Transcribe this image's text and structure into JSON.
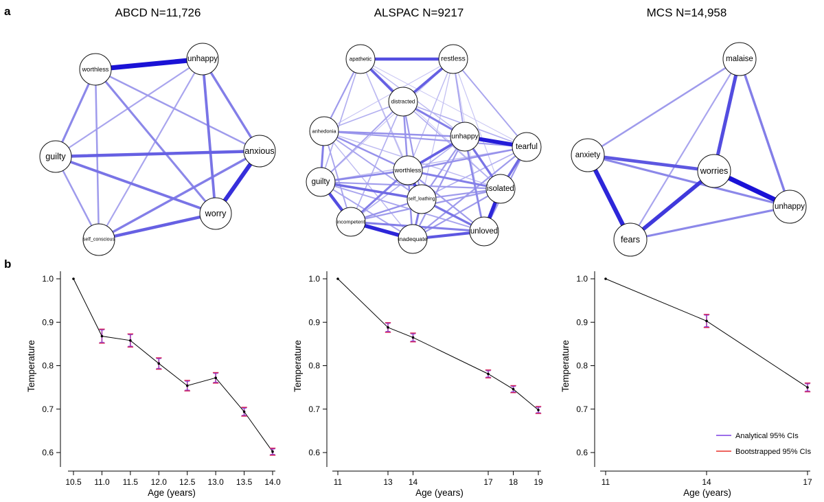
{
  "panel_letters": [
    "a",
    "b"
  ],
  "chart_data": [
    {
      "type": "network",
      "title": "ABCD N=11,726",
      "nodes": [
        {
          "id": "worthless",
          "size": 8
        },
        {
          "id": "unhappy",
          "size": 10
        },
        {
          "id": "guilty",
          "size": 11
        },
        {
          "id": "anxious",
          "size": 11
        },
        {
          "id": "worry",
          "size": 11
        },
        {
          "id": "self_conscious",
          "size": 6
        }
      ],
      "edges": [
        {
          "source": "worthless",
          "target": "unhappy",
          "weight": 1.0
        },
        {
          "source": "anxious",
          "target": "worry",
          "weight": 0.85
        },
        {
          "source": "guilty",
          "target": "anxious",
          "weight": 0.6
        },
        {
          "source": "self_conscious",
          "target": "worry",
          "weight": 0.6
        },
        {
          "source": "guilty",
          "target": "worry",
          "weight": 0.5
        },
        {
          "source": "unhappy",
          "target": "worry",
          "weight": 0.5
        },
        {
          "source": "self_conscious",
          "target": "anxious",
          "weight": 0.45
        },
        {
          "source": "worthless",
          "target": "guilty",
          "weight": 0.4
        },
        {
          "source": "unhappy",
          "target": "anxious",
          "weight": 0.45
        },
        {
          "source": "worthless",
          "target": "worry",
          "weight": 0.4
        },
        {
          "source": "worthless",
          "target": "anxious",
          "weight": 0.3
        },
        {
          "source": "worthless",
          "target": "self_conscious",
          "weight": 0.3
        },
        {
          "source": "guilty",
          "target": "self_conscious",
          "weight": 0.3
        },
        {
          "source": "unhappy",
          "target": "guilty",
          "weight": 0.25
        },
        {
          "source": "unhappy",
          "target": "self_conscious",
          "weight": 0.25
        }
      ]
    },
    {
      "type": "network",
      "title": "ALSPAC N=9217",
      "nodes": [
        {
          "id": "apathetic",
          "size": 7
        },
        {
          "id": "restless",
          "size": 9
        },
        {
          "id": "distracted",
          "size": 7
        },
        {
          "id": "anhedonia",
          "size": 6.5
        },
        {
          "id": "unhappy",
          "size": 9
        },
        {
          "id": "tearful",
          "size": 10
        },
        {
          "id": "worthless",
          "size": 8
        },
        {
          "id": "guilty",
          "size": 10
        },
        {
          "id": "self_loathing",
          "size": 5
        },
        {
          "id": "isolated",
          "size": 10
        },
        {
          "id": "incompetent",
          "size": 6.5
        },
        {
          "id": "inadequate",
          "size": 7.5
        },
        {
          "id": "unloved",
          "size": 10
        }
      ],
      "edges": [
        {
          "source": "apathetic",
          "target": "restless",
          "weight": 0.7
        },
        {
          "source": "apathetic",
          "target": "distracted",
          "weight": 0.6
        },
        {
          "source": "restless",
          "target": "distracted",
          "weight": 0.6
        },
        {
          "source": "unhappy",
          "target": "tearful",
          "weight": 0.95
        },
        {
          "source": "isolated",
          "target": "unloved",
          "weight": 0.9
        },
        {
          "source": "incompetent",
          "target": "inadequate",
          "weight": 0.9
        },
        {
          "source": "worthless",
          "target": "self_loathing",
          "weight": 0.7
        },
        {
          "source": "guilty",
          "target": "incompetent",
          "weight": 0.7
        },
        {
          "source": "inadequate",
          "target": "unloved",
          "weight": 0.65
        },
        {
          "source": "worthless",
          "target": "unhappy",
          "weight": 0.6
        },
        {
          "source": "guilty",
          "target": "self_loathing",
          "weight": 0.55
        },
        {
          "source": "anhedonia",
          "target": "guilty",
          "weight": 0.45
        },
        {
          "source": "tearful",
          "target": "isolated",
          "weight": 0.55
        },
        {
          "source": "unhappy",
          "target": "isolated",
          "weight": 0.5
        },
        {
          "source": "distracted",
          "target": "unhappy",
          "weight": 0.45
        },
        {
          "source": "self_loathing",
          "target": "unloved",
          "weight": 0.5
        },
        {
          "source": "worthless",
          "target": "isolated",
          "weight": 0.45
        },
        {
          "source": "incompetent",
          "target": "unloved",
          "weight": 0.45
        },
        {
          "source": "worthless",
          "target": "incompetent",
          "weight": 0.45
        },
        {
          "source": "anhedonia",
          "target": "unhappy",
          "weight": 0.35
        },
        {
          "source": "anhedonia",
          "target": "worthless",
          "weight": 0.35
        },
        {
          "source": "distracted",
          "target": "worthless",
          "weight": 0.35
        },
        {
          "source": "guilty",
          "target": "worthless",
          "weight": 0.4
        },
        {
          "source": "self_loathing",
          "target": "inadequate",
          "weight": 0.45
        },
        {
          "source": "unhappy",
          "target": "unloved",
          "weight": 0.4
        },
        {
          "source": "tearful",
          "target": "worthless",
          "weight": 0.35
        },
        {
          "source": "apathetic",
          "target": "anhedonia",
          "weight": 0.3
        },
        {
          "source": "restless",
          "target": "tearful",
          "weight": 0.25
        },
        {
          "source": "anhedonia",
          "target": "tearful",
          "weight": 0.3
        },
        {
          "source": "distracted",
          "target": "self_loathing",
          "weight": 0.3
        },
        {
          "source": "guilty",
          "target": "isolated",
          "weight": 0.3
        },
        {
          "source": "anhedonia",
          "target": "incompetent",
          "weight": 0.25
        },
        {
          "source": "incompetent",
          "target": "isolated",
          "weight": 0.3
        },
        {
          "source": "unhappy",
          "target": "inadequate",
          "weight": 0.3
        },
        {
          "source": "tearful",
          "target": "inadequate",
          "weight": 0.3
        },
        {
          "source": "restless",
          "target": "unhappy",
          "weight": 0.25
        },
        {
          "source": "apathetic",
          "target": "guilty",
          "weight": 0.2
        },
        {
          "source": "distracted",
          "target": "guilty",
          "weight": 0.25
        },
        {
          "source": "worthless",
          "target": "unloved",
          "weight": 0.3
        },
        {
          "source": "guilty",
          "target": "unloved",
          "weight": 0.25
        },
        {
          "source": "anhedonia",
          "target": "self_loathing",
          "weight": 0.25
        },
        {
          "source": "apathetic",
          "target": "unhappy",
          "weight": 0.15
        },
        {
          "source": "restless",
          "target": "worthless",
          "weight": 0.15
        },
        {
          "source": "distracted",
          "target": "tearful",
          "weight": 0.2
        },
        {
          "source": "distracted",
          "target": "incompetent",
          "weight": 0.2
        },
        {
          "source": "distracted",
          "target": "isolated",
          "weight": 0.2
        },
        {
          "source": "apathetic",
          "target": "worthless",
          "weight": 0.15
        },
        {
          "source": "anhedonia",
          "target": "distracted",
          "weight": 0.2
        },
        {
          "source": "restless",
          "target": "anhedonia",
          "weight": 0.1
        },
        {
          "source": "anhedonia",
          "target": "inadequate",
          "weight": 0.15
        },
        {
          "source": "apathetic",
          "target": "tearful",
          "weight": 0.08
        },
        {
          "source": "restless",
          "target": "isolated",
          "weight": 0.1
        },
        {
          "source": "restless",
          "target": "self_loathing",
          "weight": 0.12
        },
        {
          "source": "apathetic",
          "target": "self_loathing",
          "weight": 0.1
        },
        {
          "source": "tearful",
          "target": "guilty",
          "weight": 0.15
        },
        {
          "source": "tearful",
          "target": "unloved",
          "weight": 0.3
        },
        {
          "source": "worthless",
          "target": "inadequate",
          "weight": 0.35
        },
        {
          "source": "isolated",
          "target": "inadequate",
          "weight": 0.3
        },
        {
          "source": "unhappy",
          "target": "self_loathing",
          "weight": 0.3
        },
        {
          "source": "unhappy",
          "target": "incompetent",
          "weight": 0.2
        },
        {
          "source": "guilty",
          "target": "inadequate",
          "weight": 0.25
        },
        {
          "source": "restless",
          "target": "guilty",
          "weight": 0.1
        },
        {
          "source": "apathetic",
          "target": "isolated",
          "weight": 0.07
        },
        {
          "source": "anhedonia",
          "target": "isolated",
          "weight": 0.15
        },
        {
          "source": "restless",
          "target": "unloved",
          "weight": 0.07
        },
        {
          "source": "tearful",
          "target": "self_loathing",
          "weight": 0.2
        },
        {
          "source": "self_loathing",
          "target": "isolated",
          "weight": 0.3
        },
        {
          "source": "self_loathing",
          "target": "incompetent",
          "weight": 0.35
        }
      ]
    },
    {
      "type": "network",
      "title": "MCS N=14,958",
      "nodes": [
        {
          "id": "malaise",
          "size": 10
        },
        {
          "id": "anxiety",
          "size": 10
        },
        {
          "id": "worries",
          "size": 11
        },
        {
          "id": "unhappy",
          "size": 10
        },
        {
          "id": "fears",
          "size": 11
        }
      ],
      "edges": [
        {
          "source": "worries",
          "target": "unhappy",
          "weight": 1.0
        },
        {
          "source": "anxiety",
          "target": "fears",
          "weight": 0.9
        },
        {
          "source": "worries",
          "target": "fears",
          "weight": 0.8
        },
        {
          "source": "malaise",
          "target": "worries",
          "weight": 0.7
        },
        {
          "source": "anxiety",
          "target": "worries",
          "weight": 0.65
        },
        {
          "source": "malaise",
          "target": "unhappy",
          "weight": 0.45
        },
        {
          "source": "anxiety",
          "target": "unhappy",
          "weight": 0.4
        },
        {
          "source": "fears",
          "target": "unhappy",
          "weight": 0.4
        },
        {
          "source": "malaise",
          "target": "anxiety",
          "weight": 0.3
        },
        {
          "source": "malaise",
          "target": "fears",
          "weight": 0.25
        }
      ]
    },
    {
      "type": "line",
      "title": "",
      "x": [
        10.5,
        11.0,
        11.5,
        12.0,
        12.5,
        13.0,
        13.5,
        14.0
      ],
      "y": [
        1.0,
        0.868,
        0.858,
        0.805,
        0.754,
        0.772,
        0.694,
        0.602
      ],
      "ci_analytical": [
        [
          1.0,
          1.0
        ],
        [
          0.854,
          0.882
        ],
        [
          0.845,
          0.871
        ],
        [
          0.794,
          0.816
        ],
        [
          0.744,
          0.764
        ],
        [
          0.762,
          0.782
        ],
        [
          0.686,
          0.702
        ],
        [
          0.596,
          0.608
        ]
      ],
      "ci_bootstrapped": [
        [
          1.0,
          1.0
        ],
        [
          0.852,
          0.884
        ],
        [
          0.843,
          0.873
        ],
        [
          0.792,
          0.818
        ],
        [
          0.742,
          0.766
        ],
        [
          0.76,
          0.784
        ],
        [
          0.684,
          0.704
        ],
        [
          0.594,
          0.61
        ]
      ],
      "xticks": [
        "10.5",
        "11.0",
        "11.5",
        "12.0",
        "12.5",
        "13.0",
        "13.5",
        "14.0"
      ],
      "yticks": [
        "0.6",
        "0.7",
        "0.8",
        "0.9",
        "1.0"
      ],
      "xlim": [
        10.3,
        14.2
      ],
      "ylim": [
        0.58,
        1.02
      ],
      "xlabel": "Age (years)",
      "ylabel": "Temperature"
    },
    {
      "type": "line",
      "title": "",
      "x": [
        11,
        13,
        14,
        17,
        18,
        19
      ],
      "y": [
        1.0,
        0.888,
        0.865,
        0.781,
        0.746,
        0.698
      ],
      "ci_analytical": [
        [
          1.0,
          1.0
        ],
        [
          0.879,
          0.897
        ],
        [
          0.857,
          0.873
        ],
        [
          0.774,
          0.788
        ],
        [
          0.74,
          0.752
        ],
        [
          0.692,
          0.704
        ]
      ],
      "ci_bootstrapped": [
        [
          1.0,
          1.0
        ],
        [
          0.877,
          0.899
        ],
        [
          0.855,
          0.875
        ],
        [
          0.772,
          0.79
        ],
        [
          0.738,
          0.754
        ],
        [
          0.69,
          0.706
        ]
      ],
      "xticks": [
        "11",
        "13",
        "14",
        "17",
        "18",
        "19"
      ],
      "yticks": [
        "0.6",
        "0.7",
        "0.8",
        "0.9",
        "1.0"
      ],
      "xlim": [
        10.5,
        19.3
      ],
      "ylim": [
        0.58,
        1.02
      ],
      "xlabel": "Age (years)",
      "ylabel": "Temperature"
    },
    {
      "type": "line",
      "title": "",
      "x": [
        11,
        14,
        17
      ],
      "y": [
        1.0,
        0.903,
        0.75
      ],
      "ci_analytical": [
        [
          1.0,
          1.0
        ],
        [
          0.89,
          0.916
        ],
        [
          0.742,
          0.758
        ]
      ],
      "ci_bootstrapped": [
        [
          1.0,
          1.0
        ],
        [
          0.888,
          0.918
        ],
        [
          0.74,
          0.76
        ]
      ],
      "xticks": [
        "11",
        "14",
        "17"
      ],
      "yticks": [
        "0.6",
        "0.7",
        "0.8",
        "0.9",
        "1.0"
      ],
      "xlim": [
        10.6,
        17.4
      ],
      "ylim": [
        0.58,
        1.02
      ],
      "xlabel": "Age (years)",
      "ylabel": "Temperature",
      "legend": {
        "position": "bottom-right",
        "entries": [
          {
            "label": "Analytical 95% CIs",
            "color": "#7b3fe4"
          },
          {
            "label": "Bootstrapped 95% CIs",
            "color": "#e8312a"
          }
        ]
      }
    }
  ],
  "colors": {
    "edge_dark": "#1a12d6",
    "edge_light": "#d8d6f6",
    "analytical_ci": "#7b3fe4",
    "bootstrapped_ci": "#e8312a",
    "bootstrapped_ci_overlap": "#d4245c",
    "line": "#000000"
  }
}
